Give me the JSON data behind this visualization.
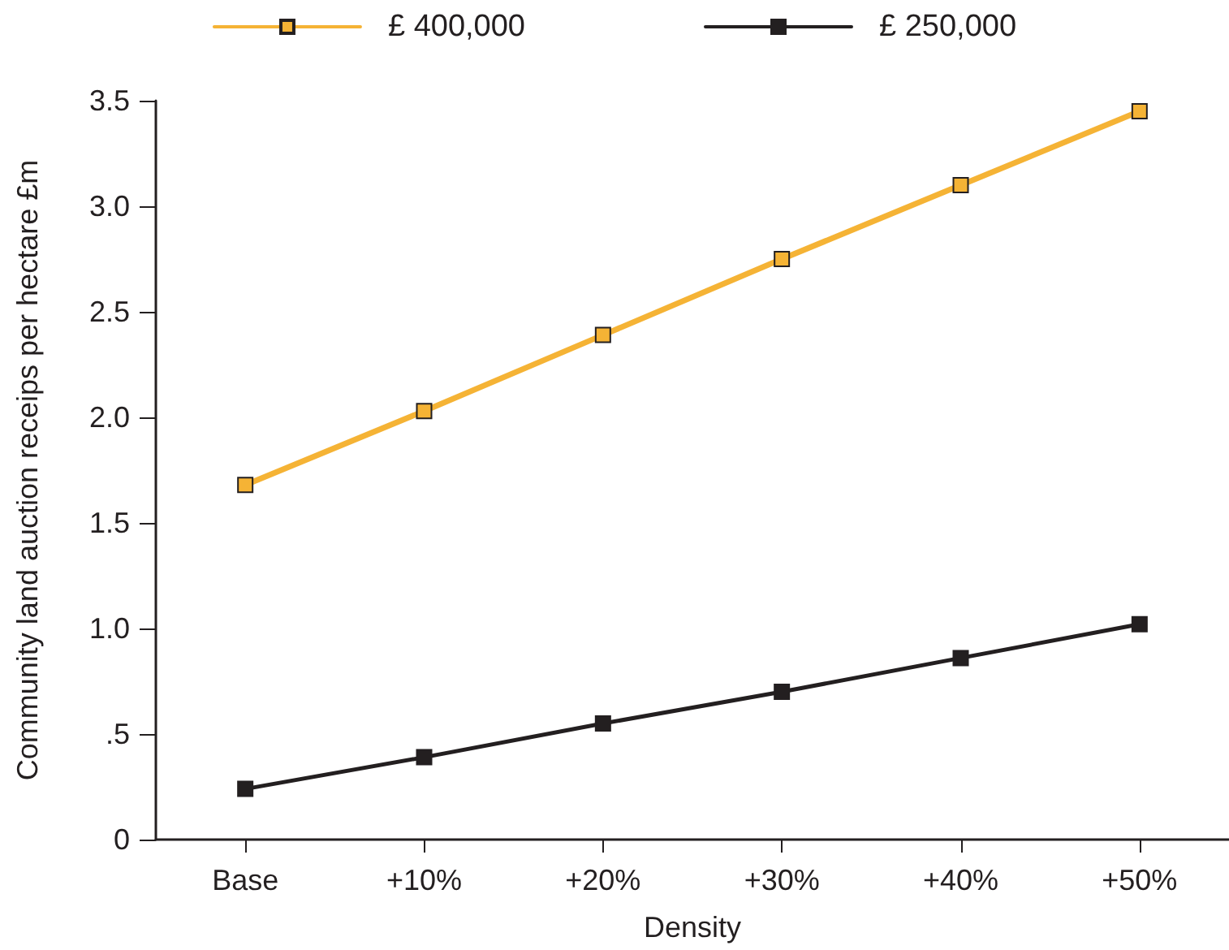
{
  "chart_data": {
    "type": "line",
    "xlabel": "Density",
    "ylabel": "Community land auction receips per hectare £m",
    "categories": [
      "Base",
      "+10%",
      "+20%",
      "+30%",
      "+40%",
      "+50%"
    ],
    "series": [
      {
        "name": "£ 400,000",
        "color": "#f5b335",
        "values": [
          1.68,
          2.03,
          2.39,
          2.75,
          3.1,
          3.45
        ]
      },
      {
        "name": "£ 250,000",
        "color": "#231f20",
        "values": [
          0.24,
          0.39,
          0.55,
          0.7,
          0.86,
          1.02
        ]
      }
    ],
    "ylim": [
      0,
      3.5
    ],
    "yticks": [
      0,
      {
        "value": 0.5,
        "label": ".5"
      },
      {
        "value": 1,
        "label": "1.0"
      },
      1.5,
      {
        "value": 2,
        "label": "2.0"
      },
      2.5,
      {
        "value": 3,
        "label": "3.0"
      },
      3.5
    ],
    "grid": false,
    "legend": "top",
    "marker": "square",
    "line_style": "solid"
  }
}
